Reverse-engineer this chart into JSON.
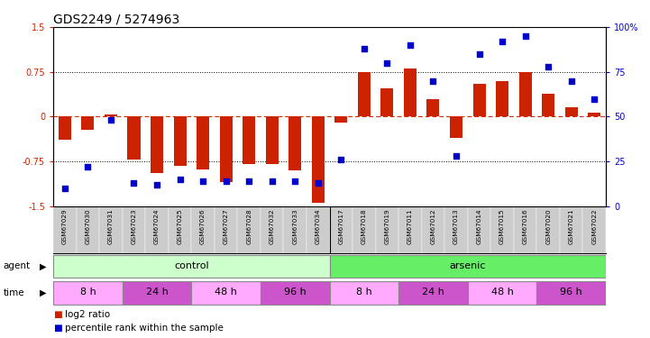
{
  "title": "GDS2249 / 5274963",
  "samples": [
    "GSM67029",
    "GSM67030",
    "GSM67031",
    "GSM67023",
    "GSM67024",
    "GSM67025",
    "GSM67026",
    "GSM67027",
    "GSM67028",
    "GSM67032",
    "GSM67033",
    "GSM67034",
    "GSM67017",
    "GSM67018",
    "GSM67019",
    "GSM67011",
    "GSM67012",
    "GSM67013",
    "GSM67014",
    "GSM67015",
    "GSM67016",
    "GSM67020",
    "GSM67021",
    "GSM67022"
  ],
  "log2_ratio": [
    -0.38,
    -0.22,
    0.04,
    -0.72,
    -0.95,
    -0.82,
    -0.88,
    -1.1,
    -0.8,
    -0.8,
    -0.9,
    -1.45,
    -0.1,
    0.75,
    0.48,
    0.8,
    0.3,
    -0.35,
    0.55,
    0.6,
    0.75,
    0.38,
    0.15,
    0.06
  ],
  "percentile": [
    10,
    22,
    48,
    13,
    12,
    15,
    14,
    14,
    14,
    14,
    14,
    13,
    26,
    88,
    80,
    90,
    70,
    28,
    85,
    92,
    95,
    78,
    70,
    60
  ],
  "agent_groups": [
    {
      "label": "control",
      "start": 0,
      "end": 11,
      "color": "#ccffcc"
    },
    {
      "label": "arsenic",
      "start": 12,
      "end": 23,
      "color": "#66ee66"
    }
  ],
  "time_groups": [
    {
      "label": "8 h",
      "start": 0,
      "end": 2,
      "color": "#ffaaff"
    },
    {
      "label": "24 h",
      "start": 3,
      "end": 5,
      "color": "#cc55cc"
    },
    {
      "label": "48 h",
      "start": 6,
      "end": 8,
      "color": "#ffaaff"
    },
    {
      "label": "96 h",
      "start": 9,
      "end": 11,
      "color": "#cc55cc"
    },
    {
      "label": "8 h",
      "start": 12,
      "end": 14,
      "color": "#ffaaff"
    },
    {
      "label": "24 h",
      "start": 15,
      "end": 17,
      "color": "#cc55cc"
    },
    {
      "label": "48 h",
      "start": 18,
      "end": 20,
      "color": "#ffaaff"
    },
    {
      "label": "96 h",
      "start": 21,
      "end": 23,
      "color": "#cc55cc"
    }
  ],
  "bar_color": "#cc2200",
  "dot_color": "#0000cc",
  "ylim_left": [
    -1.5,
    1.5
  ],
  "ylim_right": [
    0,
    100
  ],
  "yticks_left": [
    -1.5,
    -0.75,
    0,
    0.75,
    1.5
  ],
  "yticks_right": [
    0,
    25,
    50,
    75,
    100
  ],
  "hlines_dotted": [
    -0.75,
    0.75
  ],
  "hline_zero": 0.0,
  "title_fontsize": 10,
  "tick_fontsize": 7,
  "sample_fontsize": 5.2,
  "group_fontsize": 8
}
